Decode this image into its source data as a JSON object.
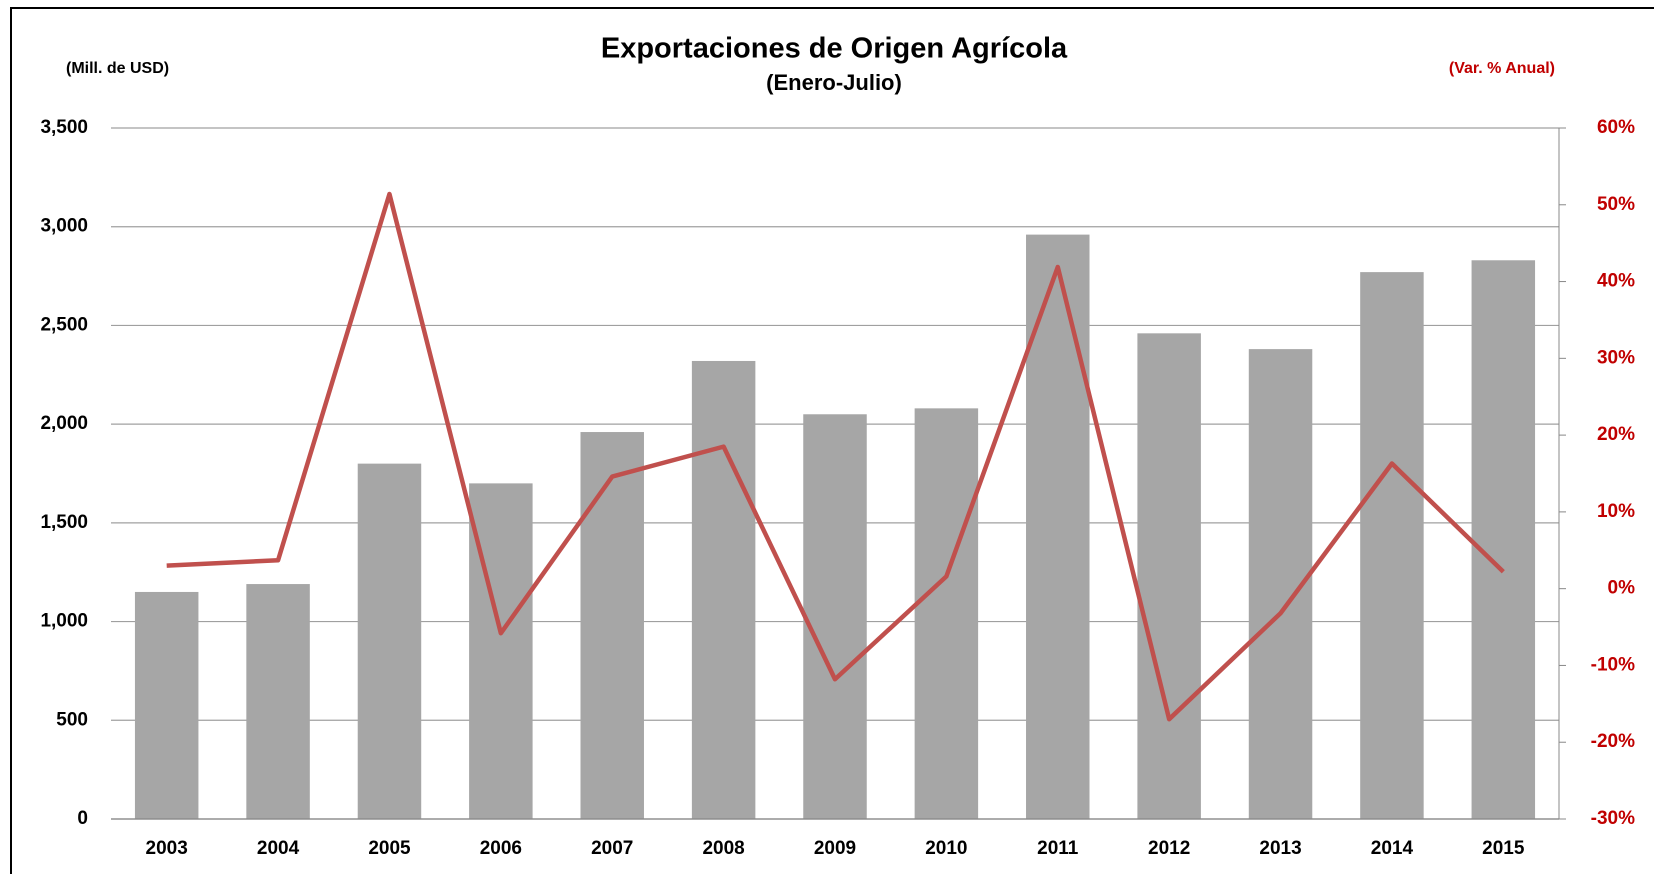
{
  "chart_data": {
    "type": "bar_line",
    "title": "Exportaciones de Origen Agrícola",
    "subtitle": "(Enero-Julio)",
    "y_label": "(Mill. de USD)",
    "y2_label": "(Var. % Anual)",
    "categories": [
      "2003",
      "2004",
      "2005",
      "2006",
      "2007",
      "2008",
      "2009",
      "2010",
      "2011",
      "2012",
      "2013",
      "2014",
      "2015"
    ],
    "series": [
      {
        "type": "bar",
        "color": "#a6a6a6",
        "values": [
          1150,
          1190,
          1800,
          1700,
          1960,
          2320,
          2050,
          2080,
          2960,
          2460,
          2380,
          2770,
          2830
        ]
      },
      {
        "type": "line",
        "axis": "y2",
        "color": "#c0504d",
        "values": [
          3,
          3.7,
          51.4,
          -5.8,
          14.6,
          18.5,
          -11.8,
          1.6,
          41.9,
          -17,
          -3.2,
          16.3,
          2.2
        ]
      }
    ],
    "ylim": [
      0,
      3500
    ],
    "yticks": [
      0,
      {
        "value": 500,
        "label": "500"
      },
      {
        "value": 1000,
        "label": "1,000"
      },
      {
        "value": 1500,
        "label": "1,500"
      },
      {
        "value": 2000,
        "label": "2,000"
      },
      {
        "value": 2500,
        "label": "2,500"
      },
      {
        "value": 3000,
        "label": "3,000"
      },
      {
        "value": 3500,
        "label": "3,500"
      }
    ],
    "y2lim": [
      -30,
      60
    ],
    "y2ticks": [
      {
        "value": -30,
        "label": "-30%"
      },
      {
        "value": -20,
        "label": "-20%"
      },
      {
        "value": -10,
        "label": "-10%"
      },
      {
        "value": 0,
        "label": "0%"
      },
      {
        "value": 10,
        "label": "10%"
      },
      {
        "value": 20,
        "label": "20%"
      },
      {
        "value": 30,
        "label": "30%"
      },
      {
        "value": 40,
        "label": "40%"
      },
      {
        "value": 50,
        "label": "50%"
      },
      {
        "value": 60,
        "label": "60%"
      }
    ],
    "grid": true
  }
}
